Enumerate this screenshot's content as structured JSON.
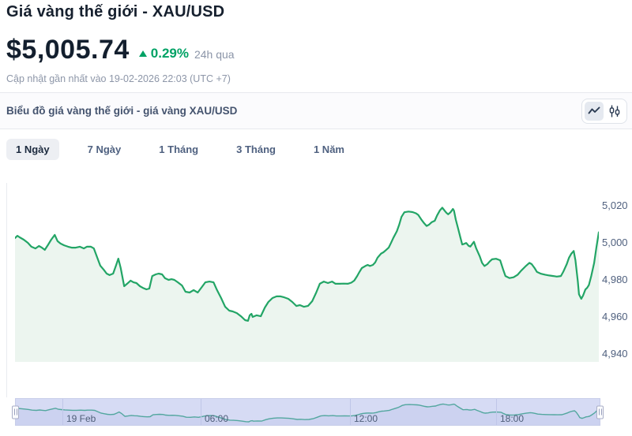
{
  "header": {
    "title": "Giá vàng thế giới - XAU/USD",
    "price": "$5,005.74",
    "change_percent": "0.29%",
    "change_direction": "up",
    "change_period": "24h qua",
    "last_updated": "Cập nhật gần nhất vào 19-02-2026 22:03 (UTC +7)"
  },
  "chart_header": {
    "title": "Biểu đồ giá vàng thế giới - giá vàng XAU/USD",
    "chart_type_options": [
      "line-chart",
      "candlestick-chart"
    ],
    "selected_chart_type": "line-chart"
  },
  "tabs": {
    "items": [
      {
        "label": "1 Ngày",
        "selected": true
      },
      {
        "label": "7 Ngày",
        "selected": false
      },
      {
        "label": "1 Tháng",
        "selected": false
      },
      {
        "label": "3 Tháng",
        "selected": false
      },
      {
        "label": "1 Năm",
        "selected": false
      }
    ]
  },
  "colors": {
    "accent_green": "#00a265",
    "line_green": "#23a566",
    "area_fill": "#ecf5ef",
    "navigator_fill": "#d6dbf4",
    "navigator_line": "#53a79f",
    "text_dark": "#16202e",
    "text_muted": "#8d96a8"
  },
  "chart_data": {
    "type": "line",
    "title": "XAU/USD gold price, 1-day range",
    "xlabel": "",
    "ylabel": "",
    "legend": "off",
    "grid": "off",
    "y_range": [
      4940,
      5020
    ],
    "y_ticks": [
      {
        "label": "5,020",
        "value": 5020
      },
      {
        "label": "5,000",
        "value": 5000
      },
      {
        "label": "4,980",
        "value": 4980
      },
      {
        "label": "4,960",
        "value": 4960
      },
      {
        "label": "4,940",
        "value": 4940
      }
    ],
    "x_ticks": [
      {
        "label": "19 Feb",
        "pos_pct": 8.0
      },
      {
        "label": "06:00",
        "pos_pct": 31.6
      },
      {
        "label": "12:00",
        "pos_pct": 57.2
      },
      {
        "label": "18:00",
        "pos_pct": 82.3
      }
    ],
    "series": [
      {
        "name": "XAU/USD",
        "points": [
          [
            0,
            5002.6
          ],
          [
            0.4,
            5003.8
          ],
          [
            0.8,
            5003.0
          ],
          [
            1.5,
            5001.7
          ],
          [
            2.2,
            5000.0
          ],
          [
            2.8,
            4997.9
          ],
          [
            3.5,
            4997.0
          ],
          [
            4.1,
            4998.3
          ],
          [
            4.6,
            4997.4
          ],
          [
            5.1,
            4996.2
          ],
          [
            5.7,
            4999.1
          ],
          [
            6.2,
            5001.7
          ],
          [
            6.8,
            5004.3
          ],
          [
            7.3,
            5000.9
          ],
          [
            7.8,
            4999.6
          ],
          [
            8.4,
            4998.7
          ],
          [
            9.1,
            4997.9
          ],
          [
            9.7,
            4997.4
          ],
          [
            10.4,
            4997.4
          ],
          [
            11.1,
            4997.9
          ],
          [
            11.8,
            4997.0
          ],
          [
            12.3,
            4997.9
          ],
          [
            13.0,
            4997.9
          ],
          [
            13.5,
            4997.0
          ],
          [
            14.1,
            4991.9
          ],
          [
            14.6,
            4987.7
          ],
          [
            15.2,
            4985.5
          ],
          [
            15.7,
            4983.4
          ],
          [
            16.2,
            4982.6
          ],
          [
            16.8,
            4983.4
          ],
          [
            17.3,
            4987.7
          ],
          [
            17.7,
            4991.5
          ],
          [
            18.1,
            4986.4
          ],
          [
            18.7,
            4976.6
          ],
          [
            19.2,
            4977.9
          ],
          [
            19.8,
            4979.6
          ],
          [
            20.3,
            4978.7
          ],
          [
            20.8,
            4978.3
          ],
          [
            21.4,
            4976.6
          ],
          [
            21.9,
            4975.7
          ],
          [
            22.5,
            4974.9
          ],
          [
            23.0,
            4975.3
          ],
          [
            23.5,
            4982.1
          ],
          [
            24.1,
            4983.0
          ],
          [
            24.6,
            4983.4
          ],
          [
            25.2,
            4983.0
          ],
          [
            25.7,
            4980.9
          ],
          [
            26.3,
            4980.0
          ],
          [
            26.8,
            4980.4
          ],
          [
            27.3,
            4980.0
          ],
          [
            27.9,
            4978.7
          ],
          [
            28.6,
            4977.0
          ],
          [
            29.2,
            4973.6
          ],
          [
            29.9,
            4973.2
          ],
          [
            30.6,
            4974.5
          ],
          [
            31.3,
            4973.2
          ],
          [
            31.9,
            4975.7
          ],
          [
            32.6,
            4978.7
          ],
          [
            33.3,
            4979.1
          ],
          [
            34.0,
            4978.7
          ],
          [
            34.6,
            4974.5
          ],
          [
            35.3,
            4970.2
          ],
          [
            36.0,
            4965.5
          ],
          [
            36.7,
            4963.4
          ],
          [
            37.3,
            4963.0
          ],
          [
            38.0,
            4962.1
          ],
          [
            38.7,
            4960.4
          ],
          [
            39.4,
            4958.3
          ],
          [
            39.9,
            4957.9
          ],
          [
            40.2,
            4960.9
          ],
          [
            40.5,
            4961.7
          ],
          [
            40.7,
            4960.0
          ],
          [
            41.4,
            4960.9
          ],
          [
            42.1,
            4960.4
          ],
          [
            42.8,
            4965.1
          ],
          [
            43.4,
            4968.1
          ],
          [
            44.1,
            4970.2
          ],
          [
            44.8,
            4971.1
          ],
          [
            45.5,
            4971.1
          ],
          [
            46.1,
            4970.6
          ],
          [
            46.8,
            4969.8
          ],
          [
            47.5,
            4968.1
          ],
          [
            48.2,
            4965.9
          ],
          [
            48.8,
            4966.4
          ],
          [
            49.5,
            4965.5
          ],
          [
            50.2,
            4966.0
          ],
          [
            50.9,
            4968.5
          ],
          [
            51.6,
            4973.2
          ],
          [
            52.2,
            4977.9
          ],
          [
            52.9,
            4979.1
          ],
          [
            53.6,
            4978.3
          ],
          [
            54.3,
            4979.1
          ],
          [
            54.9,
            4977.9
          ],
          [
            55.6,
            4977.9
          ],
          [
            56.3,
            4978.0
          ],
          [
            57.0,
            4977.9
          ],
          [
            57.6,
            4978.5
          ],
          [
            58.1,
            4979.6
          ],
          [
            58.6,
            4982.1
          ],
          [
            59.0,
            4984.3
          ],
          [
            59.4,
            4986.4
          ],
          [
            60.0,
            4987.5
          ],
          [
            60.4,
            4988.1
          ],
          [
            60.8,
            4987.5
          ],
          [
            61.3,
            4988.1
          ],
          [
            61.7,
            4989.5
          ],
          [
            62.1,
            4992.0
          ],
          [
            62.7,
            4994.2
          ],
          [
            63.1,
            4994.9
          ],
          [
            63.5,
            4996.0
          ],
          [
            64.0,
            4997.4
          ],
          [
            64.4,
            4999.9
          ],
          [
            64.8,
            5002.7
          ],
          [
            65.4,
            5006.2
          ],
          [
            65.8,
            5009.8
          ],
          [
            66.2,
            5014.0
          ],
          [
            66.7,
            5016.5
          ],
          [
            67.4,
            5016.9
          ],
          [
            68.1,
            5016.6
          ],
          [
            68.7,
            5015.9
          ],
          [
            69.1,
            5015.0
          ],
          [
            69.6,
            5012.6
          ],
          [
            70.1,
            5010.5
          ],
          [
            70.5,
            5009.1
          ],
          [
            70.9,
            5009.8
          ],
          [
            71.4,
            5011.2
          ],
          [
            71.9,
            5011.9
          ],
          [
            72.3,
            5014.8
          ],
          [
            72.8,
            5017.6
          ],
          [
            73.2,
            5019.0
          ],
          [
            73.6,
            5017.3
          ],
          [
            73.9,
            5016.2
          ],
          [
            74.2,
            5015.4
          ],
          [
            74.6,
            5016.5
          ],
          [
            75.0,
            5018.3
          ],
          [
            75.2,
            5017.3
          ],
          [
            75.5,
            5012.6
          ],
          [
            75.9,
            5007.7
          ],
          [
            76.3,
            5002.7
          ],
          [
            76.6,
            4999.1
          ],
          [
            76.9,
            4999.4
          ],
          [
            77.3,
            4999.9
          ],
          [
            77.7,
            4998.4
          ],
          [
            78.0,
            4998.0
          ],
          [
            78.6,
            5000.6
          ],
          [
            79.0,
            4997.0
          ],
          [
            79.6,
            4992.8
          ],
          [
            80.0,
            4989.2
          ],
          [
            80.4,
            4987.5
          ],
          [
            80.9,
            4988.5
          ],
          [
            81.3,
            4989.9
          ],
          [
            81.7,
            4991.1
          ],
          [
            82.4,
            4991.4
          ],
          [
            83.1,
            4990.6
          ],
          [
            83.6,
            4985.7
          ],
          [
            84.0,
            4982.1
          ],
          [
            84.7,
            4981.0
          ],
          [
            85.4,
            4981.4
          ],
          [
            86.1,
            4982.8
          ],
          [
            86.7,
            4985.0
          ],
          [
            87.4,
            4987.2
          ],
          [
            88.1,
            4989.2
          ],
          [
            88.5,
            4988.5
          ],
          [
            89.0,
            4986.4
          ],
          [
            89.4,
            4984.3
          ],
          [
            90.1,
            4983.3
          ],
          [
            90.8,
            4982.8
          ],
          [
            91.5,
            4982.4
          ],
          [
            92.2,
            4982.1
          ],
          [
            92.8,
            4981.8
          ],
          [
            93.5,
            4982.1
          ],
          [
            93.9,
            4984.3
          ],
          [
            94.5,
            4988.5
          ],
          [
            94.9,
            4992.0
          ],
          [
            95.3,
            4994.2
          ],
          [
            95.7,
            4995.6
          ],
          [
            96.0,
            4990.6
          ],
          [
            96.4,
            4979.3
          ],
          [
            96.6,
            4972.2
          ],
          [
            97.0,
            4969.8
          ],
          [
            97.3,
            4971.5
          ],
          [
            97.7,
            4974.8
          ],
          [
            98.0,
            4975.7
          ],
          [
            98.3,
            4977.2
          ],
          [
            98.7,
            4982.1
          ],
          [
            99.2,
            4989.2
          ],
          [
            99.6,
            4997.7
          ],
          [
            100,
            5005.7
          ]
        ]
      }
    ]
  }
}
